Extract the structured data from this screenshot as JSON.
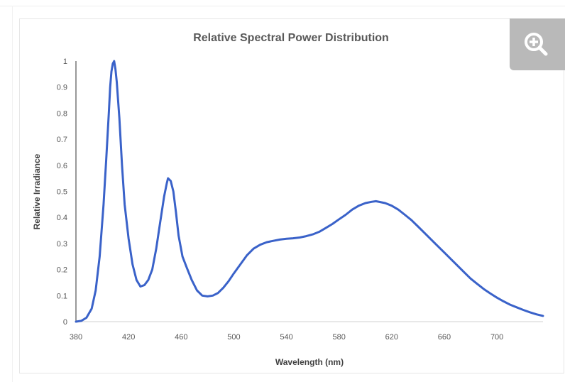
{
  "zoom_button": {
    "icon": "zoom-in-icon"
  },
  "chart_data": {
    "type": "line",
    "title": "Relative Spectral Power Distribution",
    "xlabel": "Wavelength (nm)",
    "ylabel": "Relative Irradiance",
    "xlim": [
      380,
      735
    ],
    "ylim": [
      0,
      1
    ],
    "x_ticks": [
      "380",
      "420",
      "460",
      "500",
      "540",
      "580",
      "620",
      "660",
      "700"
    ],
    "y_ticks": [
      "0",
      "0.1",
      "0.2",
      "0.3",
      "0.4",
      "0.5",
      "0.6",
      "0.7",
      "0.8",
      "0.9",
      "1"
    ],
    "grid": false,
    "legend": "none",
    "series": [
      {
        "color": "#3a62c9",
        "points": [
          [
            380,
            0.0
          ],
          [
            384,
            0.003
          ],
          [
            388,
            0.015
          ],
          [
            392,
            0.05
          ],
          [
            395,
            0.12
          ],
          [
            398,
            0.25
          ],
          [
            401,
            0.45
          ],
          [
            403,
            0.62
          ],
          [
            405,
            0.8
          ],
          [
            406,
            0.9
          ],
          [
            407,
            0.96
          ],
          [
            408,
            0.99
          ],
          [
            409,
            1.0
          ],
          [
            410,
            0.97
          ],
          [
            411,
            0.92
          ],
          [
            413,
            0.78
          ],
          [
            415,
            0.6
          ],
          [
            417,
            0.45
          ],
          [
            420,
            0.32
          ],
          [
            423,
            0.22
          ],
          [
            426,
            0.16
          ],
          [
            429,
            0.135
          ],
          [
            432,
            0.14
          ],
          [
            435,
            0.16
          ],
          [
            438,
            0.2
          ],
          [
            441,
            0.28
          ],
          [
            444,
            0.38
          ],
          [
            447,
            0.48
          ],
          [
            449,
            0.53
          ],
          [
            450,
            0.55
          ],
          [
            452,
            0.54
          ],
          [
            454,
            0.5
          ],
          [
            456,
            0.42
          ],
          [
            458,
            0.33
          ],
          [
            461,
            0.25
          ],
          [
            464,
            0.21
          ],
          [
            468,
            0.16
          ],
          [
            472,
            0.12
          ],
          [
            476,
            0.1
          ],
          [
            480,
            0.097
          ],
          [
            484,
            0.1
          ],
          [
            488,
            0.11
          ],
          [
            492,
            0.13
          ],
          [
            496,
            0.155
          ],
          [
            500,
            0.185
          ],
          [
            505,
            0.22
          ],
          [
            510,
            0.255
          ],
          [
            515,
            0.28
          ],
          [
            520,
            0.295
          ],
          [
            525,
            0.305
          ],
          [
            530,
            0.31
          ],
          [
            535,
            0.315
          ],
          [
            540,
            0.318
          ],
          [
            545,
            0.32
          ],
          [
            550,
            0.323
          ],
          [
            555,
            0.328
          ],
          [
            560,
            0.335
          ],
          [
            565,
            0.345
          ],
          [
            570,
            0.36
          ],
          [
            575,
            0.375
          ],
          [
            580,
            0.393
          ],
          [
            585,
            0.41
          ],
          [
            590,
            0.43
          ],
          [
            595,
            0.445
          ],
          [
            600,
            0.455
          ],
          [
            605,
            0.46
          ],
          [
            608,
            0.462
          ],
          [
            612,
            0.458
          ],
          [
            615,
            0.455
          ],
          [
            620,
            0.445
          ],
          [
            625,
            0.43
          ],
          [
            630,
            0.41
          ],
          [
            635,
            0.39
          ],
          [
            640,
            0.365
          ],
          [
            645,
            0.34
          ],
          [
            650,
            0.315
          ],
          [
            655,
            0.29
          ],
          [
            660,
            0.265
          ],
          [
            665,
            0.24
          ],
          [
            670,
            0.215
          ],
          [
            675,
            0.19
          ],
          [
            680,
            0.165
          ],
          [
            685,
            0.145
          ],
          [
            690,
            0.125
          ],
          [
            695,
            0.108
          ],
          [
            700,
            0.092
          ],
          [
            705,
            0.078
          ],
          [
            710,
            0.065
          ],
          [
            715,
            0.055
          ],
          [
            720,
            0.045
          ],
          [
            725,
            0.036
          ],
          [
            730,
            0.028
          ],
          [
            735,
            0.022
          ]
        ]
      }
    ]
  }
}
